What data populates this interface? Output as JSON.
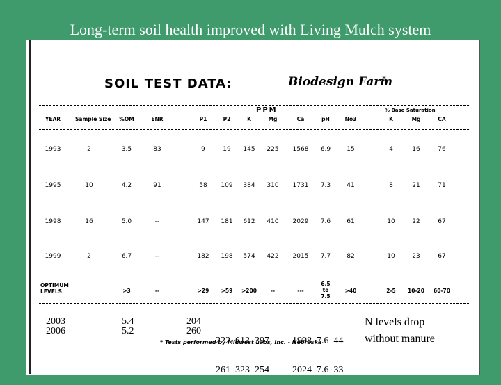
{
  "slide_title": "Long-term soil health improved with Living Mulch system",
  "table": {
    "title": "SOIL TEST DATA:",
    "farm": "Biodesign Farm",
    "farm_mark": "*",
    "ppm_label": "PPM",
    "base_sat_label": "% Base Saturation",
    "columns": [
      "YEAR",
      "Sample Size",
      "%OM",
      "ENR",
      "P1",
      "P2",
      "K",
      "Mg",
      "Ca",
      "pH",
      "No3",
      "K",
      "Mg",
      "CA"
    ],
    "rows": [
      [
        "1993",
        "2",
        "3.5",
        "83",
        "9",
        "19",
        "145",
        "225",
        "1568",
        "6.9",
        "15",
        "4",
        "16",
        "76"
      ],
      [
        "1995",
        "10",
        "4.2",
        "91",
        "58",
        "109",
        "384",
        "310",
        "1731",
        "7.3",
        "41",
        "8",
        "21",
        "71"
      ],
      [
        "1998",
        "16",
        "5.0",
        "--",
        "147",
        "181",
        "612",
        "410",
        "2029",
        "7.6",
        "61",
        "10",
        "22",
        "67"
      ],
      [
        "1999",
        "2",
        "6.7",
        "--",
        "182",
        "198",
        "574",
        "422",
        "2015",
        "7.7",
        "82",
        "10",
        "23",
        "67"
      ]
    ],
    "optimum_label": [
      "OPTIMUM",
      "LEVELS"
    ],
    "optimum": [
      "",
      "",
      ">3",
      "--",
      ">29",
      ">59",
      ">200",
      "--",
      "---",
      "6.5 to 7.5",
      ">40",
      "2-5",
      "10-20",
      "60-70"
    ],
    "footnote": "* Tests performed by Midwest Labs, Inc. - Nebraska"
  },
  "added_rows": {
    "years": [
      "2003",
      "2006"
    ],
    "om": [
      "5.4",
      "5.2"
    ],
    "p1": [
      "204",
      "260"
    ],
    "p2_k_mg": [
      "222  613  397",
      "261  323  254"
    ],
    "ca_ph_no3": [
      "1998  7.6  44",
      "2024  7.6  33"
    ]
  },
  "note": [
    "N levels drop",
    "without manure"
  ]
}
